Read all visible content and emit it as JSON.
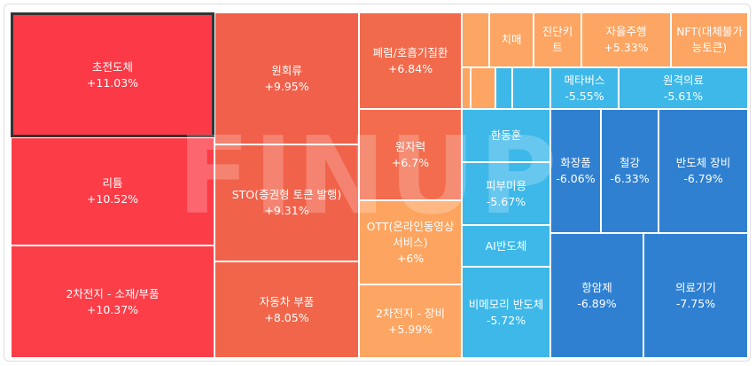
{
  "chart_data": {
    "type": "treemap",
    "watermark": "FINUP",
    "items": [
      {
        "label": "초전도체",
        "value": 11.03,
        "value_label": "+11.03%",
        "color": "#fc3a47",
        "selected": true
      },
      {
        "label": "리튬",
        "value": 10.52,
        "value_label": "+10.52%",
        "color": "#fc3c47"
      },
      {
        "label": "2차전지 - 소재/부품",
        "value": 10.37,
        "value_label": "+10.37%",
        "color": "#fc3e48"
      },
      {
        "label": "원회류",
        "value": 9.95,
        "value_label": "+9.95%",
        "color": "#f1604a"
      },
      {
        "label": "STO(증권형 토큰 발행)",
        "value": 9.31,
        "value_label": "+9.31%",
        "color": "#f1624a"
      },
      {
        "label": "자동차 부품",
        "value": 8.05,
        "value_label": "+8.05%",
        "color": "#f1664b"
      },
      {
        "label": "폐렴/호흡기질환",
        "value": 6.84,
        "value_label": "+6.84%",
        "color": "#f26a4c"
      },
      {
        "label": "원자력",
        "value": 6.7,
        "value_label": "+6.7%",
        "color": "#f26c4d"
      },
      {
        "label": "OTT(온라인동영상서비스)",
        "value": 6,
        "value_label": "+6%",
        "color": "#fda560"
      },
      {
        "label": "2차전지 - 장비",
        "value": 5.99,
        "value_label": "+5.99%",
        "color": "#fda562"
      },
      {
        "label": "치매",
        "value": null,
        "color": "#fda562"
      },
      {
        "label": "진단키트",
        "value": null,
        "color": "#fda562"
      },
      {
        "label": "자율주행",
        "value": 5.33,
        "value_label": "+5.33%",
        "color": "#fda562"
      },
      {
        "label": "NFT(대체불가능토큰)",
        "value": null,
        "color": "#fda562"
      },
      {
        "label": "메타버스",
        "value": -5.55,
        "value_label": "-5.55%",
        "color": "#3db8e9"
      },
      {
        "label": "원격의료",
        "value": -5.61,
        "value_label": "-5.61%",
        "color": "#3db8e9"
      },
      {
        "label": "한동훈",
        "value": null,
        "color": "#3db8e9"
      },
      {
        "label": "피부미용",
        "value": -5.67,
        "value_label": "-5.67%",
        "color": "#3db8e9"
      },
      {
        "label": "AI반도체",
        "value": null,
        "color": "#3db8e9"
      },
      {
        "label": "비메모리 반도체",
        "value": -5.72,
        "value_label": "-5.72%",
        "color": "#3db8e9"
      },
      {
        "label": "화장품",
        "value": -6.06,
        "value_label": "-6.06%",
        "color": "#2f80d1"
      },
      {
        "label": "철강",
        "value": -6.33,
        "value_label": "-6.33%",
        "color": "#2f80d1"
      },
      {
        "label": "반도체 장비",
        "value": -6.79,
        "value_label": "-6.79%",
        "color": "#2f80d1"
      },
      {
        "label": "항암제",
        "value": -6.89,
        "value_label": "-6.89%",
        "color": "#2f80d1"
      },
      {
        "label": "의료기기",
        "value": -7.75,
        "value_label": "-7.75%",
        "color": "#2f80d1"
      }
    ]
  }
}
